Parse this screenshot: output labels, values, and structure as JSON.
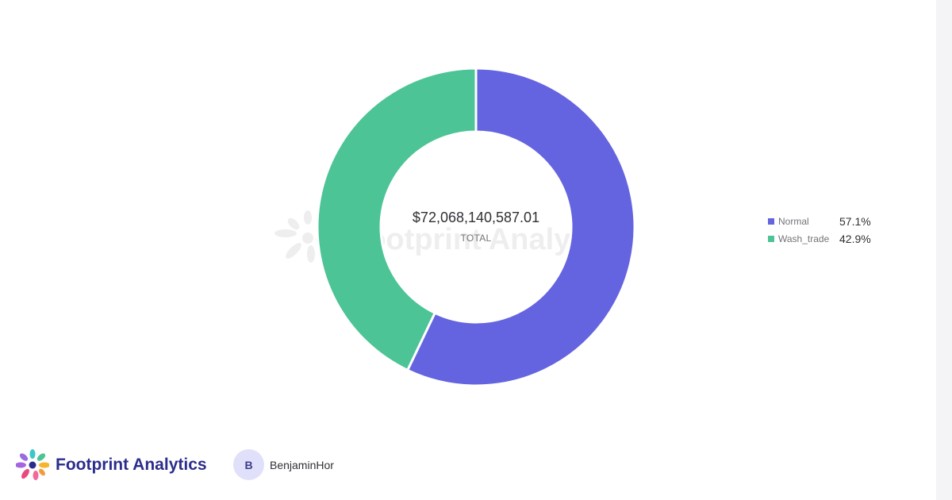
{
  "chart_data": {
    "type": "pie",
    "variant": "donut",
    "center_value": "$72,068,140,587.01",
    "center_label": "TOTAL",
    "slices": [
      {
        "name": "Normal",
        "percent": 57.1,
        "percent_label": "57.1%",
        "color": "#6464e0"
      },
      {
        "name": "Wash_trade",
        "percent": 42.9,
        "percent_label": "42.9%",
        "color": "#4cc496"
      }
    ],
    "legend_position": "right"
  },
  "watermark": {
    "text": "Footprint Analytics"
  },
  "footer": {
    "brand": "Footprint Analytics",
    "user_initial": "B",
    "user_name": "BenjaminHor"
  }
}
